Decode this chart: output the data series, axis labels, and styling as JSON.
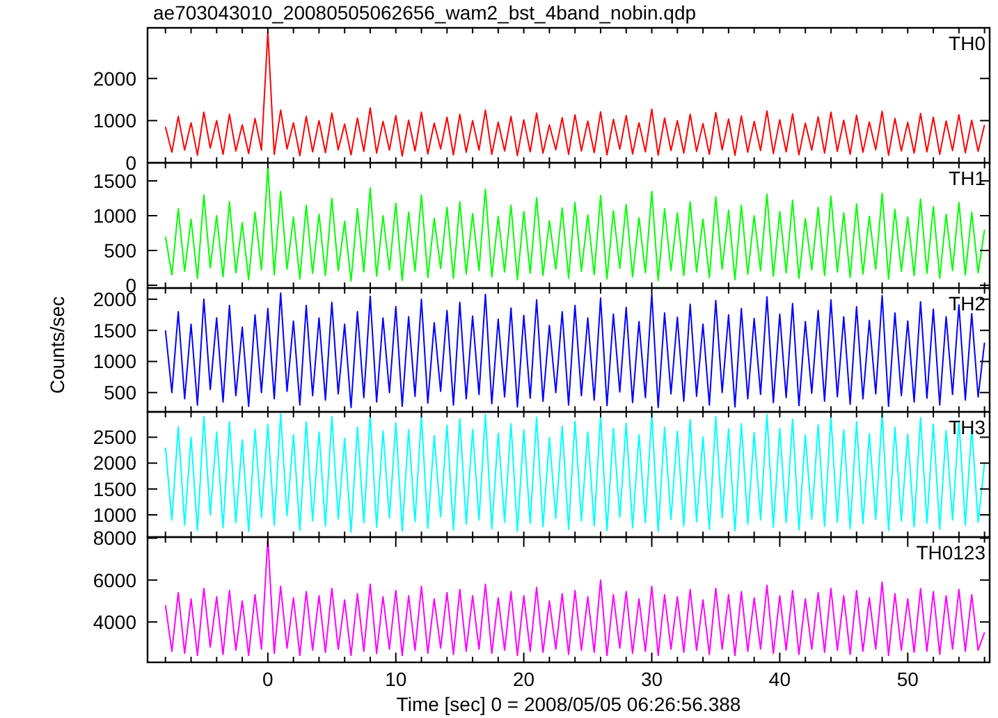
{
  "chart_data": [
    {
      "type": "line",
      "title": "ae703043010_20080505062656_wam2_bst_4band_nobin.qdp",
      "tick_labels": "y",
      "xlim": [
        -9.4,
        56.4
      ],
      "ylim": [
        0,
        3200
      ],
      "yticks": [
        0,
        1000,
        2000
      ],
      "xticks": [
        {
          "value": -8,
          "label": null
        },
        {
          "value": -6,
          "label": null
        },
        {
          "value": -4,
          "label": null
        },
        {
          "value": -2,
          "label": null
        },
        {
          "value": 0,
          "label": null
        },
        {
          "value": 2,
          "label": null
        },
        {
          "value": 4,
          "label": null
        },
        {
          "value": 6,
          "label": null
        },
        {
          "value": 8,
          "label": null
        },
        {
          "value": 10,
          "label": null
        },
        {
          "value": 12,
          "label": null
        },
        {
          "value": 14,
          "label": null
        },
        {
          "value": 16,
          "label": null
        },
        {
          "value": 18,
          "label": null
        },
        {
          "value": 20,
          "label": null
        },
        {
          "value": 22,
          "label": null
        },
        {
          "value": 24,
          "label": null
        },
        {
          "value": 26,
          "label": null
        },
        {
          "value": 28,
          "label": null
        },
        {
          "value": 30,
          "label": null
        },
        {
          "value": 32,
          "label": null
        },
        {
          "value": 34,
          "label": null
        },
        {
          "value": 36,
          "label": null
        },
        {
          "value": 38,
          "label": null
        },
        {
          "value": 40,
          "label": null
        },
        {
          "value": 42,
          "label": null
        },
        {
          "value": 44,
          "label": null
        },
        {
          "value": 46,
          "label": null
        },
        {
          "value": 48,
          "label": null
        },
        {
          "value": 50,
          "label": null
        },
        {
          "value": 52,
          "label": null
        },
        {
          "value": 54,
          "label": null
        },
        {
          "value": 56,
          "label": null
        }
      ],
      "x": [
        -8,
        -7.5,
        -7,
        -6.5,
        -6,
        -5.5,
        -5,
        -4.5,
        -4,
        -3.5,
        -3,
        -2.5,
        -2,
        -1.5,
        -1,
        -0.5,
        0,
        0.5,
        1,
        1.5,
        2,
        2.5,
        3,
        3.5,
        4,
        4.5,
        5,
        5.5,
        6,
        6.5,
        7,
        7.5,
        8,
        8.5,
        9,
        9.5,
        10,
        10.5,
        11,
        11.5,
        12,
        12.5,
        13,
        13.5,
        14,
        14.5,
        15,
        15.5,
        16,
        16.5,
        17,
        17.5,
        18,
        18.5,
        19,
        19.5,
        20,
        20.5,
        21,
        21.5,
        22,
        22.5,
        23,
        23.5,
        24,
        24.5,
        25,
        25.5,
        26,
        26.5,
        27,
        27.5,
        28,
        28.5,
        29,
        29.5,
        30,
        30.5,
        31,
        31.5,
        32,
        32.5,
        33,
        33.5,
        34,
        34.5,
        35,
        35.5,
        36,
        36.5,
        37,
        37.5,
        38,
        38.5,
        39,
        39.5,
        40,
        40.5,
        41,
        41.5,
        42,
        42.5,
        43,
        43.5,
        44,
        44.5,
        45,
        45.5,
        46,
        46.5,
        47,
        47.5,
        48,
        48.5,
        49,
        49.5,
        50,
        50.5,
        51,
        51.5,
        52,
        52.5,
        53,
        53.5,
        54,
        54.5,
        55,
        55.5,
        56
      ],
      "series": [
        {
          "name": "TH0",
          "color": "#ff0000",
          "values": [
            850,
            250,
            1100,
            300,
            950,
            180,
            1200,
            350,
            1000,
            200,
            1150,
            280,
            900,
            220,
            1050,
            300,
            3100,
            200,
            1250,
            330,
            950,
            170,
            1100,
            260,
            1000,
            240,
            1180,
            310,
            920,
            190,
            1060,
            270,
            1300,
            230,
            980,
            300,
            1120,
            160,
            1010,
            280,
            1200,
            210,
            940,
            330,
            1080,
            190,
            1150,
            250,
            1000,
            300,
            1250,
            200,
            960,
            280,
            1100,
            170,
            1020,
            260,
            1180,
            230,
            900,
            310,
            1070,
            200,
            1140,
            280,
            990,
            240,
            1210,
            190,
            1030,
            320,
            1120,
            210,
            950,
            260,
            1270,
            180,
            1060,
            290,
            1000,
            230,
            1150,
            270,
            930,
            200,
            1190,
            310,
            1040,
            180,
            1110,
            250,
            980,
            290,
            1230,
            220,
            1020,
            260,
            1160,
            190,
            940,
            300,
            1090,
            230,
            1200,
            270,
            1010,
            200,
            1130,
            250,
            970,
            310,
            1220,
            180,
            1050,
            280,
            960,
            230,
            1170,
            260,
            1080,
            200,
            990,
            290,
            1140,
            240,
            1010,
            270,
            900
          ]
        }
      ]
    },
    {
      "type": "line",
      "tick_labels": "y",
      "xlim": [
        -9.4,
        56.4
      ],
      "ylim": [
        -40,
        1760
      ],
      "yticks": [
        0,
        500,
        1000,
        1500
      ],
      "xticks": [
        {
          "value": -8,
          "label": null
        },
        {
          "value": -6,
          "label": null
        },
        {
          "value": -4,
          "label": null
        },
        {
          "value": -2,
          "label": null
        },
        {
          "value": 0,
          "label": null
        },
        {
          "value": 2,
          "label": null
        },
        {
          "value": 4,
          "label": null
        },
        {
          "value": 6,
          "label": null
        },
        {
          "value": 8,
          "label": null
        },
        {
          "value": 10,
          "label": null
        },
        {
          "value": 12,
          "label": null
        },
        {
          "value": 14,
          "label": null
        },
        {
          "value": 16,
          "label": null
        },
        {
          "value": 18,
          "label": null
        },
        {
          "value": 20,
          "label": null
        },
        {
          "value": 22,
          "label": null
        },
        {
          "value": 24,
          "label": null
        },
        {
          "value": 26,
          "label": null
        },
        {
          "value": 28,
          "label": null
        },
        {
          "value": 30,
          "label": null
        },
        {
          "value": 32,
          "label": null
        },
        {
          "value": 34,
          "label": null
        },
        {
          "value": 36,
          "label": null
        },
        {
          "value": 38,
          "label": null
        },
        {
          "value": 40,
          "label": null
        },
        {
          "value": 42,
          "label": null
        },
        {
          "value": 44,
          "label": null
        },
        {
          "value": 46,
          "label": null
        },
        {
          "value": 48,
          "label": null
        },
        {
          "value": 50,
          "label": null
        },
        {
          "value": 52,
          "label": null
        },
        {
          "value": 54,
          "label": null
        },
        {
          "value": 56,
          "label": null
        }
      ],
      "x": [
        -8,
        -7.5,
        -7,
        -6.5,
        -6,
        -5.5,
        -5,
        -4.5,
        -4,
        -3.5,
        -3,
        -2.5,
        -2,
        -1.5,
        -1,
        -0.5,
        0,
        0.5,
        1,
        1.5,
        2,
        2.5,
        3,
        3.5,
        4,
        4.5,
        5,
        5.5,
        6,
        6.5,
        7,
        7.5,
        8,
        8.5,
        9,
        9.5,
        10,
        10.5,
        11,
        11.5,
        12,
        12.5,
        13,
        13.5,
        14,
        14.5,
        15,
        15.5,
        16,
        16.5,
        17,
        17.5,
        18,
        18.5,
        19,
        19.5,
        20,
        20.5,
        21,
        21.5,
        22,
        22.5,
        23,
        23.5,
        24,
        24.5,
        25,
        25.5,
        26,
        26.5,
        27,
        27.5,
        28,
        28.5,
        29,
        29.5,
        30,
        30.5,
        31,
        31.5,
        32,
        32.5,
        33,
        33.5,
        34,
        34.5,
        35,
        35.5,
        36,
        36.5,
        37,
        37.5,
        38,
        38.5,
        39,
        39.5,
        40,
        40.5,
        41,
        41.5,
        42,
        42.5,
        43,
        43.5,
        44,
        44.5,
        45,
        45.5,
        46,
        46.5,
        47,
        47.5,
        48,
        48.5,
        49,
        49.5,
        50,
        50.5,
        51,
        51.5,
        52,
        52.5,
        53,
        53.5,
        54,
        54.5,
        55,
        55.5,
        56
      ],
      "series": [
        {
          "name": "TH1",
          "color": "#00ff00",
          "values": [
            700,
            150,
            1100,
            200,
            950,
            100,
            1300,
            250,
            1000,
            120,
            1200,
            180,
            900,
            80,
            1050,
            220,
            1700,
            150,
            1350,
            230,
            980,
            90,
            1150,
            170,
            1020,
            140,
            1250,
            210,
            920,
            60,
            1100,
            190,
            1400,
            130,
            1000,
            220,
            1180,
            70,
            1050,
            200,
            1300,
            110,
            960,
            240,
            1120,
            100,
            1200,
            160,
            1030,
            210,
            1380,
            120,
            990,
            190,
            1150,
            80,
            1060,
            170,
            1260,
            140,
            930,
            230,
            1110,
            100,
            1190,
            200,
            1010,
            150,
            1290,
            90,
            1070,
            240,
            1160,
            120,
            970,
            180,
            1350,
            70,
            1100,
            210,
            1040,
            140,
            1200,
            190,
            950,
            110,
            1270,
            230,
            1080,
            80,
            1150,
            160,
            1000,
            210,
            1310,
            130,
            1060,
            180,
            1220,
            100,
            960,
            220,
            1120,
            140,
            1280,
            190,
            1040,
            110,
            1170,
            160,
            990,
            230,
            1320,
            90,
            1090,
            200,
            980,
            140,
            1240,
            170,
            1130,
            100,
            1020,
            210,
            1190,
            150,
            1050,
            180,
            800
          ]
        }
      ]
    },
    {
      "type": "line",
      "tick_labels": "y",
      "ylabel": "Counts/sec",
      "xlim": [
        -9.4,
        56.4
      ],
      "ylim": [
        190,
        2180
      ],
      "yticks": [
        500,
        1000,
        1500,
        2000
      ],
      "xticks": [
        {
          "value": -8,
          "label": null
        },
        {
          "value": -6,
          "label": null
        },
        {
          "value": -4,
          "label": null
        },
        {
          "value": -2,
          "label": null
        },
        {
          "value": 0,
          "label": null
        },
        {
          "value": 2,
          "label": null
        },
        {
          "value": 4,
          "label": null
        },
        {
          "value": 6,
          "label": null
        },
        {
          "value": 8,
          "label": null
        },
        {
          "value": 10,
          "label": null
        },
        {
          "value": 12,
          "label": null
        },
        {
          "value": 14,
          "label": null
        },
        {
          "value": 16,
          "label": null
        },
        {
          "value": 18,
          "label": null
        },
        {
          "value": 20,
          "label": null
        },
        {
          "value": 22,
          "label": null
        },
        {
          "value": 24,
          "label": null
        },
        {
          "value": 26,
          "label": null
        },
        {
          "value": 28,
          "label": null
        },
        {
          "value": 30,
          "label": null
        },
        {
          "value": 32,
          "label": null
        },
        {
          "value": 34,
          "label": null
        },
        {
          "value": 36,
          "label": null
        },
        {
          "value": 38,
          "label": null
        },
        {
          "value": 40,
          "label": null
        },
        {
          "value": 42,
          "label": null
        },
        {
          "value": 44,
          "label": null
        },
        {
          "value": 46,
          "label": null
        },
        {
          "value": 48,
          "label": null
        },
        {
          "value": 50,
          "label": null
        },
        {
          "value": 52,
          "label": null
        },
        {
          "value": 54,
          "label": null
        },
        {
          "value": 56,
          "label": null
        }
      ],
      "x": [
        -8,
        -7.5,
        -7,
        -6.5,
        -6,
        -5.5,
        -5,
        -4.5,
        -4,
        -3.5,
        -3,
        -2.5,
        -2,
        -1.5,
        -1,
        -0.5,
        0,
        0.5,
        1,
        1.5,
        2,
        2.5,
        3,
        3.5,
        4,
        4.5,
        5,
        5.5,
        6,
        6.5,
        7,
        7.5,
        8,
        8.5,
        9,
        9.5,
        10,
        10.5,
        11,
        11.5,
        12,
        12.5,
        13,
        13.5,
        14,
        14.5,
        15,
        15.5,
        16,
        16.5,
        17,
        17.5,
        18,
        18.5,
        19,
        19.5,
        20,
        20.5,
        21,
        21.5,
        22,
        22.5,
        23,
        23.5,
        24,
        24.5,
        25,
        25.5,
        26,
        26.5,
        27,
        27.5,
        28,
        28.5,
        29,
        29.5,
        30,
        30.5,
        31,
        31.5,
        32,
        32.5,
        33,
        33.5,
        34,
        34.5,
        35,
        35.5,
        36,
        36.5,
        37,
        37.5,
        38,
        38.5,
        39,
        39.5,
        40,
        40.5,
        41,
        41.5,
        42,
        42.5,
        43,
        43.5,
        44,
        44.5,
        45,
        45.5,
        46,
        46.5,
        47,
        47.5,
        48,
        48.5,
        49,
        49.5,
        50,
        50.5,
        51,
        51.5,
        52,
        52.5,
        53,
        53.5,
        54,
        54.5,
        55,
        55.5,
        56
      ],
      "series": [
        {
          "name": "TH2",
          "color": "#0000ff",
          "values": [
            1500,
            500,
            1800,
            400,
            1600,
            300,
            2000,
            550,
            1700,
            350,
            1900,
            450,
            1550,
            280,
            1750,
            500,
            1850,
            400,
            2100,
            520,
            1650,
            300,
            1900,
            450,
            1700,
            380,
            1950,
            480,
            1600,
            260,
            1800,
            420,
            2050,
            350,
            1700,
            500,
            1880,
            280,
            1720,
            440,
            2000,
            330,
            1620,
            520,
            1820,
            300,
            1950,
            400,
            1730,
            470,
            2080,
            320,
            1680,
            430,
            1860,
            270,
            1740,
            410,
            1990,
            360,
            1580,
            500,
            1800,
            300,
            1900,
            450,
            1700,
            380,
            2020,
            290,
            1760,
            510,
            1870,
            340,
            1640,
            420,
            2090,
            260,
            1780,
            480,
            1710,
            360,
            1920,
            440,
            1600,
            300,
            1980,
            500,
            1750,
            270,
            1850,
            400,
            1690,
            470,
            2040,
            340,
            1760,
            420,
            1930,
            290,
            1640,
            490,
            1820,
            360,
            1990,
            430,
            1720,
            310,
            1880,
            400,
            1660,
            480,
            2060,
            280,
            1780,
            450,
            1650,
            350,
            1960,
            410,
            1840,
            300,
            1720,
            470,
            1910,
            380,
            1770,
            430,
            1300
          ]
        }
      ]
    },
    {
      "type": "line",
      "tick_labels": "y",
      "xlim": [
        -9.4,
        56.4
      ],
      "ylim": [
        570,
        2990
      ],
      "yticks": [
        1000,
        1500,
        2000,
        2500
      ],
      "xticks": [
        {
          "value": -8,
          "label": null
        },
        {
          "value": -6,
          "label": null
        },
        {
          "value": -4,
          "label": null
        },
        {
          "value": -2,
          "label": null
        },
        {
          "value": 0,
          "label": null
        },
        {
          "value": 2,
          "label": null
        },
        {
          "value": 4,
          "label": null
        },
        {
          "value": 6,
          "label": null
        },
        {
          "value": 8,
          "label": null
        },
        {
          "value": 10,
          "label": null
        },
        {
          "value": 12,
          "label": null
        },
        {
          "value": 14,
          "label": null
        },
        {
          "value": 16,
          "label": null
        },
        {
          "value": 18,
          "label": null
        },
        {
          "value": 20,
          "label": null
        },
        {
          "value": 22,
          "label": null
        },
        {
          "value": 24,
          "label": null
        },
        {
          "value": 26,
          "label": null
        },
        {
          "value": 28,
          "label": null
        },
        {
          "value": 30,
          "label": null
        },
        {
          "value": 32,
          "label": null
        },
        {
          "value": 34,
          "label": null
        },
        {
          "value": 36,
          "label": null
        },
        {
          "value": 38,
          "label": null
        },
        {
          "value": 40,
          "label": null
        },
        {
          "value": 42,
          "label": null
        },
        {
          "value": 44,
          "label": null
        },
        {
          "value": 46,
          "label": null
        },
        {
          "value": 48,
          "label": null
        },
        {
          "value": 50,
          "label": null
        },
        {
          "value": 52,
          "label": null
        },
        {
          "value": 54,
          "label": null
        },
        {
          "value": 56,
          "label": null
        }
      ],
      "x": [
        -8,
        -7.5,
        -7,
        -6.5,
        -6,
        -5.5,
        -5,
        -4.5,
        -4,
        -3.5,
        -3,
        -2.5,
        -2,
        -1.5,
        -1,
        -0.5,
        0,
        0.5,
        1,
        1.5,
        2,
        2.5,
        3,
        3.5,
        4,
        4.5,
        5,
        5.5,
        6,
        6.5,
        7,
        7.5,
        8,
        8.5,
        9,
        9.5,
        10,
        10.5,
        11,
        11.5,
        12,
        12.5,
        13,
        13.5,
        14,
        14.5,
        15,
        15.5,
        16,
        16.5,
        17,
        17.5,
        18,
        18.5,
        19,
        19.5,
        20,
        20.5,
        21,
        21.5,
        22,
        22.5,
        23,
        23.5,
        24,
        24.5,
        25,
        25.5,
        26,
        26.5,
        27,
        27.5,
        28,
        28.5,
        29,
        29.5,
        30,
        30.5,
        31,
        31.5,
        32,
        32.5,
        33,
        33.5,
        34,
        34.5,
        35,
        35.5,
        36,
        36.5,
        37,
        37.5,
        38,
        38.5,
        39,
        39.5,
        40,
        40.5,
        41,
        41.5,
        42,
        42.5,
        43,
        43.5,
        44,
        44.5,
        45,
        45.5,
        46,
        46.5,
        47,
        47.5,
        48,
        48.5,
        49,
        49.5,
        50,
        50.5,
        51,
        51.5,
        52,
        52.5,
        53,
        53.5,
        54,
        54.5,
        55,
        55.5,
        56
      ],
      "series": [
        {
          "name": "TH3",
          "color": "#00ffff",
          "values": [
            2300,
            900,
            2700,
            800,
            2500,
            700,
            2900,
            1000,
            2600,
            750,
            2800,
            850,
            2450,
            680,
            2650,
            950,
            2750,
            800,
            2950,
            980,
            2550,
            700,
            2800,
            880,
            2600,
            780,
            2900,
            920,
            2480,
            660,
            2700,
            850,
            2950,
            760,
            2620,
            940,
            2780,
            690,
            2640,
            870,
            2920,
            740,
            2530,
            960,
            2730,
            710,
            2860,
            820,
            2650,
            900,
            2940,
            730,
            2580,
            860,
            2760,
            680,
            2640,
            840,
            2890,
            770,
            2490,
            930,
            2710,
            720,
            2810,
            880,
            2600,
            790,
            2930,
            700,
            2670,
            950,
            2770,
            750,
            2550,
            850,
            2950,
            680,
            2690,
            910,
            2620,
            780,
            2840,
            870,
            2510,
            720,
            2900,
            940,
            2660,
            690,
            2760,
            820,
            2590,
            900,
            2940,
            760,
            2670,
            850,
            2850,
            710,
            2550,
            920,
            2740,
            780,
            2900,
            860,
            2640,
            730,
            2800,
            830,
            2570,
            910,
            2950,
            700,
            2690,
            880,
            2560,
            770,
            2880,
            840,
            2750,
            720,
            2630,
            900,
            2820,
            800,
            2680,
            860,
            2000
          ]
        }
      ]
    },
    {
      "type": "line",
      "xlabel": "Time [sec] 0 = 2008/05/05 06:26:56.388",
      "xlim": [
        -9.4,
        56.4
      ],
      "ylim": [
        2070,
        8050
      ],
      "yticks": [
        4000,
        6000,
        8000
      ],
      "xticks": [
        {
          "value": -8,
          "label": null
        },
        {
          "value": -6,
          "label": null
        },
        {
          "value": -4,
          "label": null
        },
        {
          "value": -2,
          "label": null
        },
        0,
        {
          "value": 2,
          "label": null
        },
        {
          "value": 4,
          "label": null
        },
        {
          "value": 6,
          "label": null
        },
        {
          "value": 8,
          "label": null
        },
        10,
        {
          "value": 12,
          "label": null
        },
        {
          "value": 14,
          "label": null
        },
        {
          "value": 16,
          "label": null
        },
        {
          "value": 18,
          "label": null
        },
        20,
        {
          "value": 22,
          "label": null
        },
        {
          "value": 24,
          "label": null
        },
        {
          "value": 26,
          "label": null
        },
        {
          "value": 28,
          "label": null
        },
        30,
        {
          "value": 32,
          "label": null
        },
        {
          "value": 34,
          "label": null
        },
        {
          "value": 36,
          "label": null
        },
        {
          "value": 38,
          "label": null
        },
        40,
        {
          "value": 42,
          "label": null
        },
        {
          "value": 44,
          "label": null
        },
        {
          "value": 46,
          "label": null
        },
        {
          "value": 48,
          "label": null
        },
        50,
        {
          "value": 52,
          "label": null
        },
        {
          "value": 54,
          "label": null
        },
        {
          "value": 56,
          "label": null
        }
      ],
      "x": [
        -8,
        -7.5,
        -7,
        -6.5,
        -6,
        -5.5,
        -5,
        -4.5,
        -4,
        -3.5,
        -3,
        -2.5,
        -2,
        -1.5,
        -1,
        -0.5,
        0,
        0.5,
        1,
        1.5,
        2,
        2.5,
        3,
        3.5,
        4,
        4.5,
        5,
        5.5,
        6,
        6.5,
        7,
        7.5,
        8,
        8.5,
        9,
        9.5,
        10,
        10.5,
        11,
        11.5,
        12,
        12.5,
        13,
        13.5,
        14,
        14.5,
        15,
        15.5,
        16,
        16.5,
        17,
        17.5,
        18,
        18.5,
        19,
        19.5,
        20,
        20.5,
        21,
        21.5,
        22,
        22.5,
        23,
        23.5,
        24,
        24.5,
        25,
        25.5,
        26,
        26.5,
        27,
        27.5,
        28,
        28.5,
        29,
        29.5,
        30,
        30.5,
        31,
        31.5,
        32,
        32.5,
        33,
        33.5,
        34,
        34.5,
        35,
        35.5,
        36,
        36.5,
        37,
        37.5,
        38,
        38.5,
        39,
        39.5,
        40,
        40.5,
        41,
        41.5,
        42,
        42.5,
        43,
        43.5,
        44,
        44.5,
        45,
        45.5,
        46,
        46.5,
        47,
        47.5,
        48,
        48.5,
        49,
        49.5,
        50,
        50.5,
        51,
        51.5,
        52,
        52.5,
        53,
        53.5,
        54,
        54.5,
        55,
        55.5,
        56
      ],
      "series": [
        {
          "name": "TH0123",
          "color": "#ff00ff",
          "values": [
            4800,
            2600,
            5400,
            2500,
            5100,
            2400,
            5600,
            2800,
            5200,
            2450,
            5500,
            2650,
            5000,
            2400,
            5300,
            2700,
            8000,
            2500,
            5700,
            2750,
            5150,
            2400,
            5450,
            2650,
            5250,
            2550,
            5600,
            2700,
            5050,
            2400,
            5350,
            2600,
            5800,
            2500,
            5200,
            2700,
            5500,
            2400,
            5250,
            2650,
            5700,
            2500,
            5100,
            2750,
            5400,
            2450,
            5550,
            2600,
            5250,
            2700,
            5800,
            2500,
            5150,
            2650,
            5450,
            2400,
            5250,
            2600,
            5650,
            2550,
            5000,
            2700,
            5350,
            2450,
            5500,
            2650,
            5200,
            2550,
            6000,
            2400,
            5300,
            2750,
            5450,
            2500,
            5100,
            2600,
            5700,
            2400,
            5300,
            2700,
            5200,
            2550,
            5550,
            2650,
            5050,
            2450,
            5600,
            2700,
            5300,
            2400,
            5450,
            2600,
            5150,
            2700,
            5750,
            2500,
            5250,
            2650,
            5500,
            2450,
            5100,
            2700,
            5400,
            2550,
            5600,
            2650,
            5250,
            2450,
            5500,
            2600,
            5150,
            2700,
            5900,
            2400,
            5350,
            2650,
            5100,
            2550,
            5600,
            2600,
            5450,
            2450,
            5250,
            2700,
            5550,
            2600,
            5300,
            2650,
            3500
          ]
        }
      ]
    }
  ]
}
